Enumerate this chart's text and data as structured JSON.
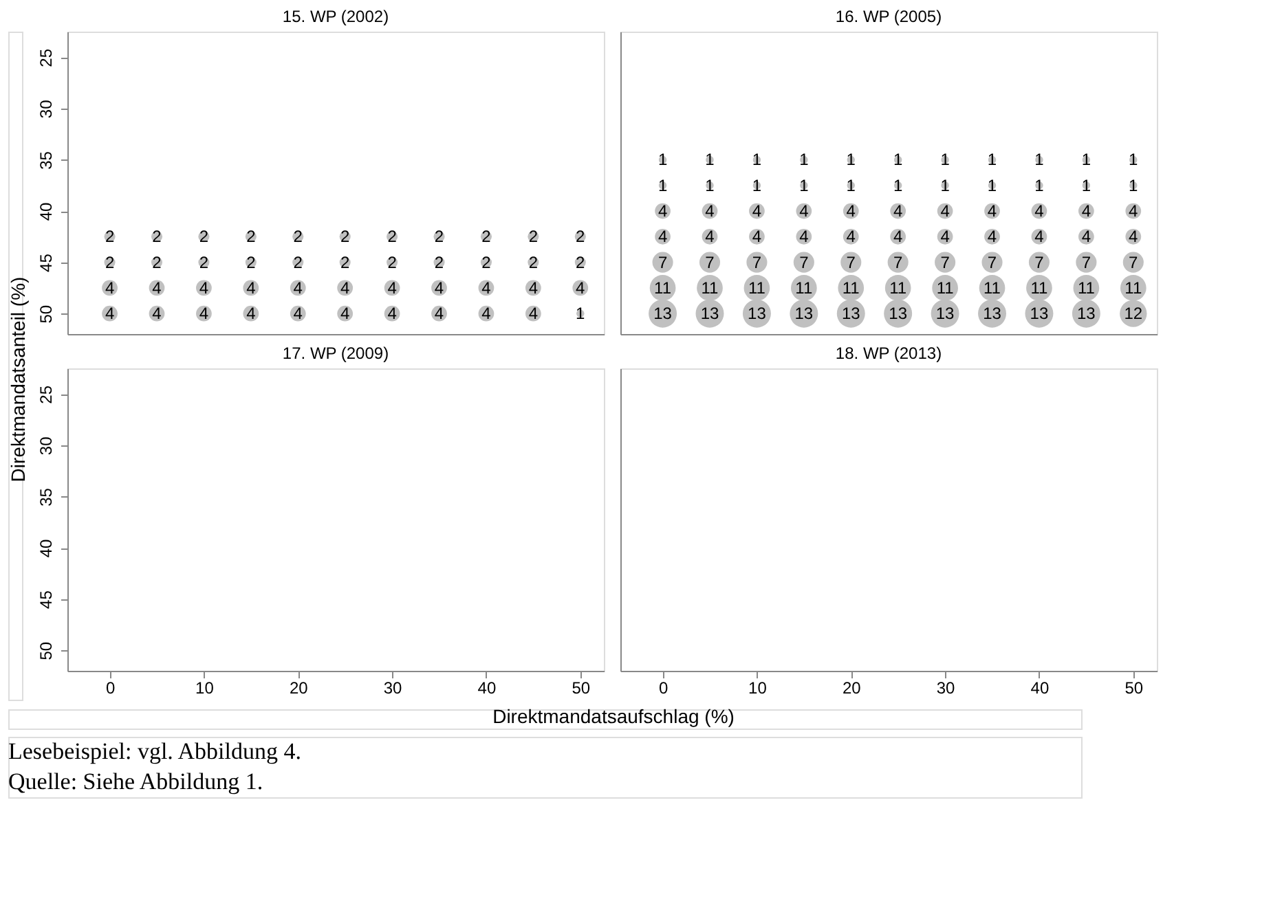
{
  "chart_data": [
    {
      "type": "bubble",
      "title": "15. WP (2002)",
      "ylabel": "Direktmandatsanteil (%)",
      "xlim": [
        -4.5,
        52.5
      ],
      "ylim": [
        52,
        22.5
      ],
      "xticks": [
        0,
        10,
        20,
        30,
        40,
        50
      ],
      "yticks": [
        25,
        30,
        35,
        40,
        45,
        50
      ],
      "tick_labels": "y",
      "grid": false,
      "series": [
        {
          "color": "#c0c0c0",
          "x": [
            0,
            5,
            10,
            15,
            20,
            25,
            30,
            35,
            40,
            45,
            50
          ],
          "values": [
            42.5,
            42.5,
            42.5,
            42.5,
            42.5,
            42.5,
            42.5,
            42.5,
            42.5,
            42.5,
            42.5
          ],
          "sizes": [
            2,
            2,
            2,
            2,
            2,
            2,
            2,
            2,
            2,
            2,
            2
          ],
          "value_labels": [
            "2",
            "2",
            "2",
            "2",
            "2",
            "2",
            "2",
            "2",
            "2",
            "2",
            "2"
          ]
        },
        {
          "color": "#c0c0c0",
          "x": [
            0,
            5,
            10,
            15,
            20,
            25,
            30,
            35,
            40,
            45,
            50
          ],
          "values": [
            45,
            45,
            45,
            45,
            45,
            45,
            45,
            45,
            45,
            45,
            45
          ],
          "sizes": [
            2,
            2,
            2,
            2,
            2,
            2,
            2,
            2,
            2,
            2,
            2
          ],
          "value_labels": [
            "2",
            "2",
            "2",
            "2",
            "2",
            "2",
            "2",
            "2",
            "2",
            "2",
            "2"
          ]
        },
        {
          "color": "#c0c0c0",
          "x": [
            0,
            5,
            10,
            15,
            20,
            25,
            30,
            35,
            40,
            45,
            50
          ],
          "values": [
            47.5,
            47.5,
            47.5,
            47.5,
            47.5,
            47.5,
            47.5,
            47.5,
            47.5,
            47.5,
            47.5
          ],
          "sizes": [
            4,
            4,
            4,
            4,
            4,
            4,
            4,
            4,
            4,
            4,
            4
          ],
          "value_labels": [
            "4",
            "4",
            "4",
            "4",
            "4",
            "4",
            "4",
            "4",
            "4",
            "4",
            "4"
          ]
        },
        {
          "color": "#c0c0c0",
          "x": [
            0,
            5,
            10,
            15,
            20,
            25,
            30,
            35,
            40,
            45,
            50
          ],
          "values": [
            50,
            50,
            50,
            50,
            50,
            50,
            50,
            50,
            50,
            50,
            50
          ],
          "sizes": [
            4,
            4,
            4,
            4,
            4,
            4,
            4,
            4,
            4,
            4,
            1
          ],
          "value_labels": [
            "4",
            "4",
            "4",
            "4",
            "4",
            "4",
            "4",
            "4",
            "4",
            "4",
            "1"
          ]
        }
      ]
    },
    {
      "type": "bubble",
      "title": "16. WP (2005)",
      "xlim": [
        -4.5,
        52.5
      ],
      "ylim": [
        52,
        22.5
      ],
      "xticks": [
        0,
        10,
        20,
        30,
        40,
        50
      ],
      "yticks": [
        25,
        30,
        35,
        40,
        45,
        50
      ],
      "tick_labels": false,
      "grid": false,
      "series": [
        {
          "color": "#c0c0c0",
          "x": [
            0,
            5,
            10,
            15,
            20,
            25,
            30,
            35,
            40,
            45,
            50
          ],
          "values": [
            35,
            35,
            35,
            35,
            35,
            35,
            35,
            35,
            35,
            35,
            35
          ],
          "sizes": [
            1,
            1,
            1,
            1,
            1,
            1,
            1,
            1,
            1,
            1,
            1
          ],
          "value_labels": [
            "1",
            "1",
            "1",
            "1",
            "1",
            "1",
            "1",
            "1",
            "1",
            "1",
            "1"
          ]
        },
        {
          "color": "#c0c0c0",
          "x": [
            0,
            5,
            10,
            15,
            20,
            25,
            30,
            35,
            40,
            45,
            50
          ],
          "values": [
            37.5,
            37.5,
            37.5,
            37.5,
            37.5,
            37.5,
            37.5,
            37.5,
            37.5,
            37.5,
            37.5
          ],
          "sizes": [
            1,
            1,
            1,
            1,
            1,
            1,
            1,
            1,
            1,
            1,
            1
          ],
          "value_labels": [
            "1",
            "1",
            "1",
            "1",
            "1",
            "1",
            "1",
            "1",
            "1",
            "1",
            "1"
          ]
        },
        {
          "color": "#c0c0c0",
          "x": [
            0,
            5,
            10,
            15,
            20,
            25,
            30,
            35,
            40,
            45,
            50
          ],
          "values": [
            40,
            40,
            40,
            40,
            40,
            40,
            40,
            40,
            40,
            40,
            40
          ],
          "sizes": [
            4,
            4,
            4,
            4,
            4,
            4,
            4,
            4,
            4,
            4,
            4
          ],
          "value_labels": [
            "4",
            "4",
            "4",
            "4",
            "4",
            "4",
            "4",
            "4",
            "4",
            "4",
            "4"
          ]
        },
        {
          "color": "#c0c0c0",
          "x": [
            0,
            5,
            10,
            15,
            20,
            25,
            30,
            35,
            40,
            45,
            50
          ],
          "values": [
            42.5,
            42.5,
            42.5,
            42.5,
            42.5,
            42.5,
            42.5,
            42.5,
            42.5,
            42.5,
            42.5
          ],
          "sizes": [
            4,
            4,
            4,
            4,
            4,
            4,
            4,
            4,
            4,
            4,
            4
          ],
          "value_labels": [
            "4",
            "4",
            "4",
            "4",
            "4",
            "4",
            "4",
            "4",
            "4",
            "4",
            "4"
          ]
        },
        {
          "color": "#c0c0c0",
          "x": [
            0,
            5,
            10,
            15,
            20,
            25,
            30,
            35,
            40,
            45,
            50
          ],
          "values": [
            45,
            45,
            45,
            45,
            45,
            45,
            45,
            45,
            45,
            45,
            45
          ],
          "sizes": [
            7,
            7,
            7,
            7,
            7,
            7,
            7,
            7,
            7,
            7,
            7
          ],
          "value_labels": [
            "7",
            "7",
            "7",
            "7",
            "7",
            "7",
            "7",
            "7",
            "7",
            "7",
            "7"
          ]
        },
        {
          "color": "#c0c0c0",
          "x": [
            0,
            5,
            10,
            15,
            20,
            25,
            30,
            35,
            40,
            45,
            50
          ],
          "values": [
            47.5,
            47.5,
            47.5,
            47.5,
            47.5,
            47.5,
            47.5,
            47.5,
            47.5,
            47.5,
            47.5
          ],
          "sizes": [
            11,
            11,
            11,
            11,
            11,
            11,
            11,
            11,
            11,
            11,
            11
          ],
          "value_labels": [
            "11",
            "11",
            "11",
            "11",
            "11",
            "11",
            "11",
            "11",
            "11",
            "11",
            "11"
          ]
        },
        {
          "color": "#c0c0c0",
          "x": [
            0,
            5,
            10,
            15,
            20,
            25,
            30,
            35,
            40,
            45,
            50
          ],
          "values": [
            50,
            50,
            50,
            50,
            50,
            50,
            50,
            50,
            50,
            50,
            50
          ],
          "sizes": [
            13,
            13,
            13,
            13,
            13,
            13,
            13,
            13,
            13,
            13,
            12
          ],
          "value_labels": [
            "13",
            "13",
            "13",
            "13",
            "13",
            "13",
            "13",
            "13",
            "13",
            "13",
            "12"
          ]
        }
      ]
    },
    {
      "type": "bubble",
      "title": "17. WP (2009)",
      "xlabel": "Direktmandatsaufschlag (%)",
      "xlim": [
        -4.5,
        52.5
      ],
      "ylim": [
        52,
        22.5
      ],
      "xticks": [
        0,
        10,
        20,
        30,
        40,
        50
      ],
      "yticks": [
        25,
        30,
        35,
        40,
        45,
        50
      ],
      "grid": false,
      "annotations": [
        "Lesebeispiel: vgl. Abbildung 4.",
        "Quelle: Siehe Abbildung 1."
      ]
    },
    {
      "type": "bubble",
      "title": "18. WP (2013)",
      "xlim": [
        -4.5,
        52.5
      ],
      "ylim": [
        52,
        22.5
      ],
      "xticks": [
        0,
        10,
        20,
        30,
        40,
        50
      ],
      "yticks": [
        25,
        30,
        35,
        40,
        45,
        50
      ],
      "tick_labels": "x",
      "grid": false
    }
  ]
}
